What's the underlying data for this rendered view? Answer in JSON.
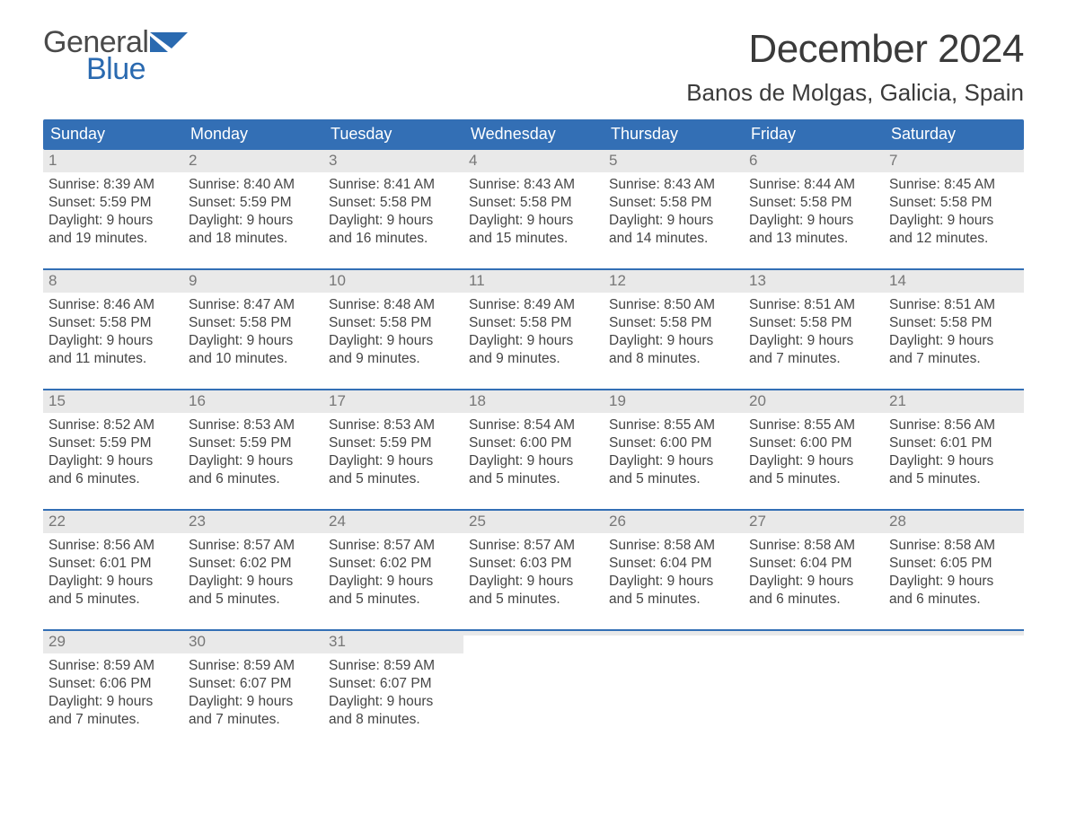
{
  "brand": {
    "word1": "General",
    "word2": "Blue",
    "word1_color": "#4a4a4a",
    "word2_color": "#2a6ab0",
    "flag_color": "#2a6ab0"
  },
  "title": "December 2024",
  "location": "Banos de Molgas, Galicia, Spain",
  "colors": {
    "header_bg": "#336fb5",
    "header_text": "#ffffff",
    "daynum_bg": "#e9e9e9",
    "daynum_text": "#777777",
    "body_text": "#444444",
    "week_border": "#336fb5",
    "page_bg": "#ffffff"
  },
  "typography": {
    "title_fontsize": 44,
    "location_fontsize": 26,
    "header_fontsize": 18,
    "daynum_fontsize": 17,
    "body_fontsize": 15.5
  },
  "day_labels": [
    "Sunday",
    "Monday",
    "Tuesday",
    "Wednesday",
    "Thursday",
    "Friday",
    "Saturday"
  ],
  "weeks": [
    [
      {
        "num": "1",
        "sunrise": "Sunrise: 8:39 AM",
        "sunset": "Sunset: 5:59 PM",
        "dl1": "Daylight: 9 hours",
        "dl2": "and 19 minutes."
      },
      {
        "num": "2",
        "sunrise": "Sunrise: 8:40 AM",
        "sunset": "Sunset: 5:59 PM",
        "dl1": "Daylight: 9 hours",
        "dl2": "and 18 minutes."
      },
      {
        "num": "3",
        "sunrise": "Sunrise: 8:41 AM",
        "sunset": "Sunset: 5:58 PM",
        "dl1": "Daylight: 9 hours",
        "dl2": "and 16 minutes."
      },
      {
        "num": "4",
        "sunrise": "Sunrise: 8:43 AM",
        "sunset": "Sunset: 5:58 PM",
        "dl1": "Daylight: 9 hours",
        "dl2": "and 15 minutes."
      },
      {
        "num": "5",
        "sunrise": "Sunrise: 8:43 AM",
        "sunset": "Sunset: 5:58 PM",
        "dl1": "Daylight: 9 hours",
        "dl2": "and 14 minutes."
      },
      {
        "num": "6",
        "sunrise": "Sunrise: 8:44 AM",
        "sunset": "Sunset: 5:58 PM",
        "dl1": "Daylight: 9 hours",
        "dl2": "and 13 minutes."
      },
      {
        "num": "7",
        "sunrise": "Sunrise: 8:45 AM",
        "sunset": "Sunset: 5:58 PM",
        "dl1": "Daylight: 9 hours",
        "dl2": "and 12 minutes."
      }
    ],
    [
      {
        "num": "8",
        "sunrise": "Sunrise: 8:46 AM",
        "sunset": "Sunset: 5:58 PM",
        "dl1": "Daylight: 9 hours",
        "dl2": "and 11 minutes."
      },
      {
        "num": "9",
        "sunrise": "Sunrise: 8:47 AM",
        "sunset": "Sunset: 5:58 PM",
        "dl1": "Daylight: 9 hours",
        "dl2": "and 10 minutes."
      },
      {
        "num": "10",
        "sunrise": "Sunrise: 8:48 AM",
        "sunset": "Sunset: 5:58 PM",
        "dl1": "Daylight: 9 hours",
        "dl2": "and 9 minutes."
      },
      {
        "num": "11",
        "sunrise": "Sunrise: 8:49 AM",
        "sunset": "Sunset: 5:58 PM",
        "dl1": "Daylight: 9 hours",
        "dl2": "and 9 minutes."
      },
      {
        "num": "12",
        "sunrise": "Sunrise: 8:50 AM",
        "sunset": "Sunset: 5:58 PM",
        "dl1": "Daylight: 9 hours",
        "dl2": "and 8 minutes."
      },
      {
        "num": "13",
        "sunrise": "Sunrise: 8:51 AM",
        "sunset": "Sunset: 5:58 PM",
        "dl1": "Daylight: 9 hours",
        "dl2": "and 7 minutes."
      },
      {
        "num": "14",
        "sunrise": "Sunrise: 8:51 AM",
        "sunset": "Sunset: 5:58 PM",
        "dl1": "Daylight: 9 hours",
        "dl2": "and 7 minutes."
      }
    ],
    [
      {
        "num": "15",
        "sunrise": "Sunrise: 8:52 AM",
        "sunset": "Sunset: 5:59 PM",
        "dl1": "Daylight: 9 hours",
        "dl2": "and 6 minutes."
      },
      {
        "num": "16",
        "sunrise": "Sunrise: 8:53 AM",
        "sunset": "Sunset: 5:59 PM",
        "dl1": "Daylight: 9 hours",
        "dl2": "and 6 minutes."
      },
      {
        "num": "17",
        "sunrise": "Sunrise: 8:53 AM",
        "sunset": "Sunset: 5:59 PM",
        "dl1": "Daylight: 9 hours",
        "dl2": "and 5 minutes."
      },
      {
        "num": "18",
        "sunrise": "Sunrise: 8:54 AM",
        "sunset": "Sunset: 6:00 PM",
        "dl1": "Daylight: 9 hours",
        "dl2": "and 5 minutes."
      },
      {
        "num": "19",
        "sunrise": "Sunrise: 8:55 AM",
        "sunset": "Sunset: 6:00 PM",
        "dl1": "Daylight: 9 hours",
        "dl2": "and 5 minutes."
      },
      {
        "num": "20",
        "sunrise": "Sunrise: 8:55 AM",
        "sunset": "Sunset: 6:00 PM",
        "dl1": "Daylight: 9 hours",
        "dl2": "and 5 minutes."
      },
      {
        "num": "21",
        "sunrise": "Sunrise: 8:56 AM",
        "sunset": "Sunset: 6:01 PM",
        "dl1": "Daylight: 9 hours",
        "dl2": "and 5 minutes."
      }
    ],
    [
      {
        "num": "22",
        "sunrise": "Sunrise: 8:56 AM",
        "sunset": "Sunset: 6:01 PM",
        "dl1": "Daylight: 9 hours",
        "dl2": "and 5 minutes."
      },
      {
        "num": "23",
        "sunrise": "Sunrise: 8:57 AM",
        "sunset": "Sunset: 6:02 PM",
        "dl1": "Daylight: 9 hours",
        "dl2": "and 5 minutes."
      },
      {
        "num": "24",
        "sunrise": "Sunrise: 8:57 AM",
        "sunset": "Sunset: 6:02 PM",
        "dl1": "Daylight: 9 hours",
        "dl2": "and 5 minutes."
      },
      {
        "num": "25",
        "sunrise": "Sunrise: 8:57 AM",
        "sunset": "Sunset: 6:03 PM",
        "dl1": "Daylight: 9 hours",
        "dl2": "and 5 minutes."
      },
      {
        "num": "26",
        "sunrise": "Sunrise: 8:58 AM",
        "sunset": "Sunset: 6:04 PM",
        "dl1": "Daylight: 9 hours",
        "dl2": "and 5 minutes."
      },
      {
        "num": "27",
        "sunrise": "Sunrise: 8:58 AM",
        "sunset": "Sunset: 6:04 PM",
        "dl1": "Daylight: 9 hours",
        "dl2": "and 6 minutes."
      },
      {
        "num": "28",
        "sunrise": "Sunrise: 8:58 AM",
        "sunset": "Sunset: 6:05 PM",
        "dl1": "Daylight: 9 hours",
        "dl2": "and 6 minutes."
      }
    ],
    [
      {
        "num": "29",
        "sunrise": "Sunrise: 8:59 AM",
        "sunset": "Sunset: 6:06 PM",
        "dl1": "Daylight: 9 hours",
        "dl2": "and 7 minutes."
      },
      {
        "num": "30",
        "sunrise": "Sunrise: 8:59 AM",
        "sunset": "Sunset: 6:07 PM",
        "dl1": "Daylight: 9 hours",
        "dl2": "and 7 minutes."
      },
      {
        "num": "31",
        "sunrise": "Sunrise: 8:59 AM",
        "sunset": "Sunset: 6:07 PM",
        "dl1": "Daylight: 9 hours",
        "dl2": "and 8 minutes."
      },
      {
        "empty": true
      },
      {
        "empty": true
      },
      {
        "empty": true
      },
      {
        "empty": true
      }
    ]
  ]
}
